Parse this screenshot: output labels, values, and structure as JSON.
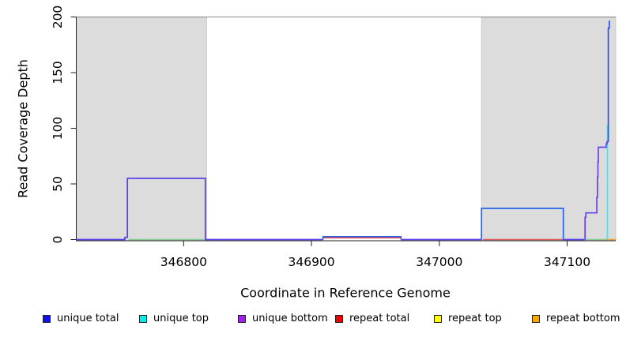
{
  "chart_data": {
    "type": "line",
    "title": "",
    "xlabel": "Coordinate in Reference Genome",
    "ylabel": "Read Coverage Depth",
    "xlim": [
      346716,
      347138
    ],
    "ylim": [
      0,
      200
    ],
    "x_ticks": [
      346800,
      346900,
      347000,
      347100
    ],
    "y_ticks": [
      0,
      50,
      100,
      150,
      200
    ],
    "grid": false,
    "legend_position": "bottom",
    "legend": [
      {
        "label": "unique total",
        "color": "#1010EE"
      },
      {
        "label": "unique top",
        "color": "#00EEEE"
      },
      {
        "label": "unique bottom",
        "color": "#A020F0"
      },
      {
        "label": "repeat total",
        "color": "#EE0000"
      },
      {
        "label": "repeat top",
        "color": "#FFFF00"
      },
      {
        "label": "repeat bottom",
        "color": "#FFA500"
      }
    ],
    "shaded_regions": [
      [
        346716,
        346818
      ],
      [
        347033,
        347138
      ]
    ],
    "shade_color": "#DCDCDC",
    "segments": [
      {
        "name": "unique-coverage-left",
        "color": "#5740E8",
        "width": 1.7,
        "points": [
          [
            346716,
            0
          ],
          [
            346754,
            0
          ],
          [
            346754,
            2
          ],
          [
            346756,
            2
          ],
          [
            346756,
            55
          ],
          [
            346817,
            55
          ],
          [
            346817,
            0
          ],
          [
            346909,
            0
          ]
        ]
      },
      {
        "name": "top-strand-zero-left",
        "color": "#7FCB8F",
        "width": 1.4,
        "points": [
          [
            346757,
            0
          ],
          [
            346816,
            0
          ]
        ]
      },
      {
        "name": "repeat-total-bump",
        "color": "#E04A50",
        "width": 1.5,
        "points": [
          [
            346909,
            0
          ],
          [
            346909,
            1.6
          ],
          [
            346970,
            1.6
          ],
          [
            346970,
            0
          ]
        ]
      },
      {
        "name": "unique-total-bump",
        "color": "#2563EB",
        "width": 1.5,
        "points": [
          [
            346909,
            0
          ],
          [
            346909,
            2.6
          ],
          [
            346970,
            2.6
          ],
          [
            346970,
            0
          ]
        ]
      },
      {
        "name": "zero-mid",
        "color": "#5740E8",
        "width": 1.7,
        "points": [
          [
            346970,
            0
          ],
          [
            347033,
            0
          ]
        ]
      },
      {
        "name": "repeat-total-zero-right",
        "color": "#E0555C",
        "width": 1.4,
        "points": [
          [
            347034,
            0
          ],
          [
            347097,
            0
          ]
        ]
      },
      {
        "name": "unique-total-right-plateau",
        "color": "#2563EB",
        "width": 1.7,
        "points": [
          [
            347033,
            0
          ],
          [
            347033,
            28
          ],
          [
            347097,
            28
          ],
          [
            347097,
            0
          ]
        ]
      },
      {
        "name": "zero-after-plateau",
        "color": "#5740E8",
        "width": 1.7,
        "points": [
          [
            347097,
            0
          ],
          [
            347114,
            0
          ]
        ]
      },
      {
        "name": "top-strand-zero-right",
        "color": "#7FCB8F",
        "width": 1.4,
        "points": [
          [
            347114,
            0
          ],
          [
            347131,
            0
          ]
        ]
      },
      {
        "name": "repeat-bottom-zero-edge",
        "color": "#F59B23",
        "width": 1.4,
        "points": [
          [
            347130,
            0
          ],
          [
            347138,
            0
          ]
        ]
      },
      {
        "name": "unique-top-final-spike",
        "color": "#57DBE8",
        "width": 1.6,
        "points": [
          [
            347131.5,
            0
          ],
          [
            347131.5,
            103
          ]
        ]
      },
      {
        "name": "unique-total-final-spike",
        "color": "#2D50E8",
        "width": 1.7,
        "points": [
          [
            347132.2,
            90
          ],
          [
            347132.2,
            190
          ],
          [
            347133,
            190
          ],
          [
            347133,
            196
          ],
          [
            347133.7,
            196
          ]
        ]
      },
      {
        "name": "unique-bottom-steps",
        "color": "#6B3FE8",
        "width": 1.7,
        "points": [
          [
            347114,
            0
          ],
          [
            347114,
            20
          ],
          [
            347114.6,
            20
          ],
          [
            347114.6,
            24
          ],
          [
            347123.2,
            24
          ],
          [
            347123.2,
            38
          ],
          [
            347123.7,
            38
          ],
          [
            347123.7,
            56
          ],
          [
            347124.1,
            56
          ],
          [
            347124.1,
            70
          ],
          [
            347124.4,
            70
          ],
          [
            347124.4,
            83
          ],
          [
            347130.6,
            83
          ],
          [
            347130.6,
            86
          ],
          [
            347131.2,
            86
          ],
          [
            347131.2,
            88
          ],
          [
            347132.2,
            88
          ],
          [
            347132.2,
            90
          ]
        ]
      }
    ]
  }
}
